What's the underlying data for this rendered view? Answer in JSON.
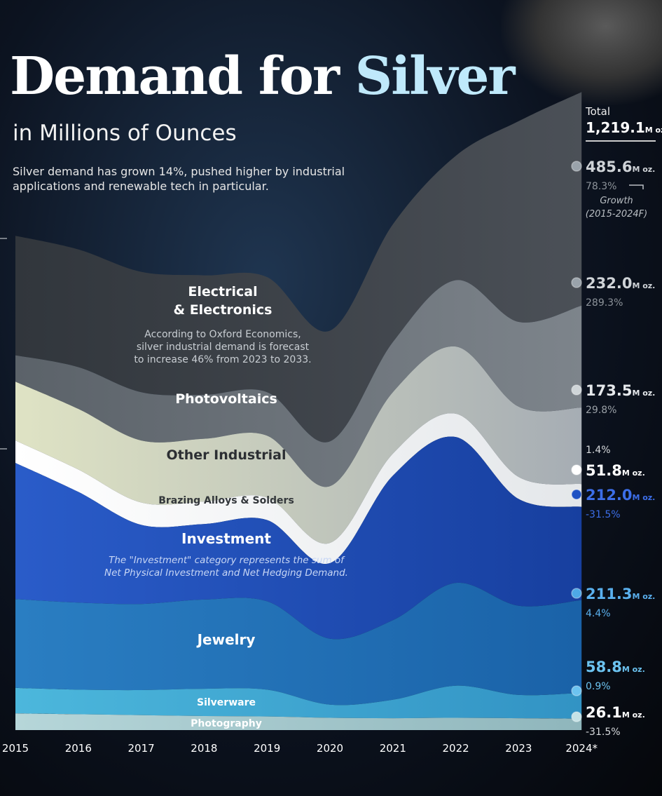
{
  "header": {
    "title_main": "Demand for ",
    "title_highlight": "Silver",
    "subtitle": "in Millions of Ounces",
    "description": "Silver demand has grown 14%, pushed higher by industrial applications and renewable tech in particular."
  },
  "total": {
    "label": "Total",
    "value": "1,219.1",
    "unit": "M oz."
  },
  "growth_label": {
    "line1": "Growth",
    "line2": "(2015-2024F)"
  },
  "annotations": {
    "electrical": [
      "According to Oxford Economics,",
      "silver industrial demand is forecast",
      "to increase 46% from 2023 to 2033."
    ],
    "investment": [
      "The \"Investment\" category represents the sum of",
      "Net Physical Investment and Net Hedging Demand."
    ]
  },
  "colors": {
    "electrical": "#3d4249",
    "photovoltaics": "#666d75",
    "other_industrial": "#aeb5bd",
    "brazing": "#eef0f1",
    "investment": "#1f52c3",
    "jewelry": "#1d6fb6",
    "silverware": "#3aa4d0",
    "photography": "#9fc3c8",
    "accent_blue": "#5ab0ee",
    "muted_text": "#8d939a"
  },
  "chart_data": {
    "type": "area",
    "stacking": "stream",
    "title": "Demand for Silver",
    "subtitle": "in Millions of Ounces",
    "unit": "M oz.",
    "x": [
      "2015",
      "2016",
      "2017",
      "2018",
      "2019",
      "2020",
      "2021",
      "2022",
      "2023",
      "2024*"
    ],
    "series": [
      {
        "key": "photography",
        "name": "Photography",
        "value_2024": "26.1",
        "growth": "-31.5%",
        "values": [
          38,
          36,
          34,
          32,
          31,
          28,
          27,
          28,
          27,
          26
        ]
      },
      {
        "key": "silverware",
        "name": "Silverware",
        "value_2024": "58.8",
        "growth": "0.9%",
        "values": [
          58,
          56,
          57,
          62,
          61,
          30,
          42,
          73,
          53,
          59
        ]
      },
      {
        "key": "jewelry",
        "name": "Jewelry",
        "value_2024": "211.3",
        "growth": "4.4%",
        "values": [
          202,
          198,
          196,
          203,
          201,
          150,
          181,
          234,
          203,
          211
        ]
      },
      {
        "key": "investment",
        "name": "Investment",
        "value_2024": "212.0",
        "growth": "-31.5%",
        "values": [
          310,
          252,
          180,
          172,
          185,
          172,
          329,
          332,
          243,
          212
        ]
      },
      {
        "key": "brazing",
        "name": "Brazing Alloys & Solders",
        "value_2024": "51.8",
        "growth": "1.4%",
        "values": [
          51,
          51,
          51,
          51,
          51,
          46,
          50,
          53,
          50,
          52
        ]
      },
      {
        "key": "other_industrial",
        "name": "Other Industrial",
        "value_2024": "173.5",
        "growth": "29.8%",
        "values": [
          134,
          138,
          141,
          143,
          141,
          129,
          140,
          153,
          160,
          174
        ]
      },
      {
        "key": "photovoltaics",
        "name": "Photovoltaics",
        "value_2024": "232.0",
        "growth": "289.3%",
        "values": [
          60,
          95,
          110,
          100,
          99,
          102,
          114,
          151,
          193,
          232
        ]
      },
      {
        "key": "electrical",
        "name": "Electrical & Electronics",
        "value_2024": "485.6",
        "growth": "78.3%",
        "values": [
          272,
          268,
          274,
          272,
          262,
          252,
          268,
          283,
          457,
          486
        ]
      }
    ]
  }
}
